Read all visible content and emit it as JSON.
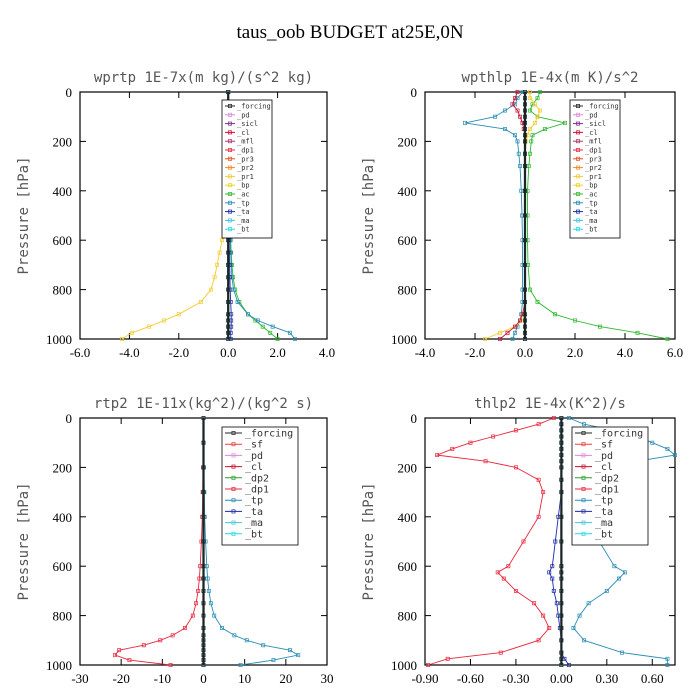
{
  "title": "taus_oob  BUDGET at25E,0N",
  "colors": {
    "_forcing": "#222222",
    "_pd": "#d88ad8",
    "_sicl": "#7a2c8a",
    "_cl": "#c8102e",
    "_mfl": "#b0306a",
    "_dp1": "#e8263c",
    "_dp2": "#2e9e2e",
    "_pr3": "#e05020",
    "_pr2": "#f08a20",
    "_pr1": "#f2cc30",
    "_bp": "#f0d020",
    "_ac": "#2db82d",
    "_tp": "#2a8db5",
    "_ta": "#1a2aa8",
    "_ma": "#40c8d8",
    "_bt": "#20d8e8",
    "_sf": "#e84040"
  },
  "chart_data": [
    {
      "type": "line",
      "title": "wprtp  1E-7x(m kg)/(s^2 kg)",
      "xlabel": "",
      "ylabel": "Pressure [hPa]",
      "xlim": [
        -6,
        4
      ],
      "ylim": [
        1000,
        0
      ],
      "xticks": [
        "-6.0",
        "-4.0",
        "-2.0",
        "0.0",
        "2.0",
        "4.0"
      ],
      "xtick_values": [
        -6,
        -4,
        -2,
        0,
        2,
        4
      ],
      "yticks": [
        "0",
        "200",
        "400",
        "600",
        "800",
        "1000"
      ],
      "ytick_values": [
        0,
        200,
        400,
        600,
        800,
        1000
      ],
      "legend_placement": "top-right",
      "legend": [
        "_forcing",
        "_pd",
        "_sicl",
        "_cl",
        "_mfl",
        "_dp1",
        "_pr3",
        "_pr2",
        "_pr1",
        "_bp",
        "_ac",
        "_tp",
        "_ta",
        "_ma",
        "_bt"
      ],
      "y": [
        0,
        50,
        100,
        150,
        200,
        250,
        300,
        350,
        400,
        450,
        500,
        550,
        600,
        650,
        700,
        750,
        800,
        850,
        900,
        925,
        950,
        975,
        1000
      ],
      "series": [
        {
          "name": "_pr1",
          "values": [
            0,
            0,
            0,
            0,
            0,
            0,
            0,
            0,
            -0.02,
            -0.05,
            -0.1,
            -0.18,
            -0.25,
            -0.35,
            -0.45,
            -0.55,
            -0.7,
            -1.1,
            -2.0,
            -2.6,
            -3.2,
            -3.9,
            -4.3
          ]
        },
        {
          "name": "_ac",
          "values": [
            0,
            0,
            0,
            0,
            0,
            0,
            0,
            0,
            0,
            0.03,
            0.05,
            0.08,
            0.1,
            0.12,
            0.15,
            0.2,
            0.28,
            0.45,
            0.8,
            1.1,
            1.4,
            1.7,
            2.0
          ]
        },
        {
          "name": "_tp",
          "values": [
            0,
            0,
            0,
            0,
            0,
            0,
            0,
            0,
            0,
            0.02,
            0.04,
            0.06,
            0.08,
            0.1,
            0.12,
            0.15,
            0.22,
            0.38,
            0.8,
            1.2,
            1.8,
            2.5,
            2.7
          ]
        },
        {
          "name": "_ta",
          "values": [
            0,
            0,
            0,
            0,
            0,
            0,
            0,
            0,
            0,
            0,
            0.02,
            0.03,
            0.04,
            0.05,
            0.06,
            0.07,
            0.08,
            0.1,
            0.12,
            0.12,
            0.12,
            0.1,
            0.1
          ]
        },
        {
          "name": "_bt",
          "values": [
            0,
            0,
            0,
            0,
            0,
            0,
            0,
            0,
            0,
            0,
            0,
            0,
            0,
            0,
            0,
            0,
            0,
            0,
            0,
            0,
            0,
            0,
            0
          ]
        },
        {
          "name": "_forcing",
          "values": [
            0,
            0,
            0,
            0,
            0,
            0,
            0,
            0,
            0,
            0,
            0,
            0,
            0,
            0,
            0,
            0,
            0,
            0,
            0,
            0,
            0,
            0,
            0
          ]
        }
      ]
    },
    {
      "type": "line",
      "title": "wpthlp  1E-4x(m K)/s^2",
      "xlabel": "",
      "ylabel": "Pressure [hPa]",
      "xlim": [
        -4,
        6
      ],
      "ylim": [
        1000,
        0
      ],
      "xticks": [
        "-4.0",
        "-2.0",
        "0.0",
        "2.0",
        "4.0",
        "6.0"
      ],
      "xtick_values": [
        -4,
        -2,
        0,
        2,
        4,
        6
      ],
      "yticks": [
        "0",
        "200",
        "400",
        "600",
        "800",
        "1000"
      ],
      "ytick_values": [
        0,
        200,
        400,
        600,
        800,
        1000
      ],
      "legend_placement": "top-right",
      "legend": [
        "_forcing",
        "_pd",
        "_sicl",
        "_cl",
        "_mfl",
        "_dp1",
        "_pr3",
        "_pr2",
        "_pr1",
        "_bp",
        "_ac",
        "_tp",
        "_ta",
        "_ma",
        "_bt"
      ],
      "y": [
        0,
        25,
        50,
        75,
        100,
        125,
        150,
        175,
        200,
        250,
        300,
        400,
        500,
        600,
        700,
        800,
        850,
        900,
        925,
        950,
        975,
        1000
      ],
      "series": [
        {
          "name": "_ac",
          "values": [
            0.6,
            0.5,
            0.3,
            0.2,
            0.5,
            1.6,
            0.8,
            0.3,
            0.25,
            0.2,
            0.15,
            0.1,
            0.1,
            0.1,
            0.12,
            0.2,
            0.5,
            1.2,
            2.0,
            3.0,
            4.5,
            5.7
          ]
        },
        {
          "name": "_tp",
          "values": [
            -0.1,
            -0.3,
            -0.4,
            -0.8,
            -1.2,
            -2.4,
            -0.8,
            -0.4,
            -0.3,
            -0.25,
            -0.2,
            -0.15,
            -0.12,
            -0.1,
            -0.1,
            -0.1,
            -0.1,
            -0.15,
            -0.2,
            -0.3,
            -0.4,
            -0.5
          ]
        },
        {
          "name": "_pr1",
          "values": [
            0.2,
            0.2,
            0.4,
            0.6,
            0.5,
            0.4,
            0.2,
            0.1,
            0.05,
            0,
            0,
            0,
            0,
            0,
            0,
            0,
            0,
            -0.05,
            -0.1,
            -0.4,
            -1.0,
            -1.6
          ]
        },
        {
          "name": "_cl",
          "values": [
            -0.3,
            -0.4,
            -0.5,
            -0.3,
            -0.2,
            -0.1,
            -0.05,
            0,
            0,
            0,
            0,
            0,
            0,
            0,
            0,
            0,
            0,
            -0.1,
            -0.2,
            -0.4,
            -0.7,
            -1.0
          ]
        },
        {
          "name": "_bt",
          "values": [
            0,
            0,
            0,
            0,
            0,
            0,
            0,
            0,
            0,
            0,
            0,
            0,
            0,
            0,
            0,
            0,
            0,
            0,
            0,
            0,
            0,
            0
          ]
        },
        {
          "name": "_forcing",
          "values": [
            0,
            0,
            0,
            0,
            0,
            0,
            0,
            0,
            0,
            0,
            0,
            0,
            0,
            0,
            0,
            0,
            0,
            0,
            0,
            0,
            0,
            0
          ]
        }
      ]
    },
    {
      "type": "line",
      "title": "rtp2  1E-11x(kg^2)/(kg^2 s)",
      "xlabel": "",
      "ylabel": "Pressure [hPa]",
      "xlim": [
        -30,
        30
      ],
      "ylim": [
        1000,
        0
      ],
      "xticks": [
        "-30",
        "-20",
        "-10",
        "0",
        "10",
        "20",
        "30"
      ],
      "xtick_values": [
        -30,
        -20,
        -10,
        0,
        10,
        20,
        30
      ],
      "yticks": [
        "0",
        "200",
        "400",
        "600",
        "800",
        "1000"
      ],
      "ytick_values": [
        0,
        200,
        400,
        600,
        800,
        1000
      ],
      "legend_placement": "top-right",
      "legend": [
        "_forcing",
        "_sf",
        "_pd",
        "_cl",
        "_dp2",
        "_dp1",
        "_tp",
        "_ta",
        "_ma",
        "_bt"
      ],
      "y": [
        0,
        100,
        200,
        300,
        400,
        500,
        600,
        650,
        700,
        750,
        800,
        850,
        880,
        900,
        920,
        940,
        960,
        980,
        1000
      ],
      "series": [
        {
          "name": "_dp1",
          "values": [
            0,
            0,
            -0.1,
            -0.2,
            -0.3,
            -0.5,
            -0.8,
            -1.0,
            -1.3,
            -1.8,
            -2.6,
            -4.5,
            -7.5,
            -10.5,
            -14.5,
            -20.5,
            -21.5,
            -18,
            -8
          ]
        },
        {
          "name": "_tp",
          "values": [
            0,
            0,
            0.1,
            0.2,
            0.3,
            0.5,
            0.8,
            1.0,
            1.3,
            1.8,
            2.6,
            4.5,
            7.5,
            10.5,
            14.5,
            21.0,
            23.0,
            17,
            9
          ]
        },
        {
          "name": "_bt",
          "values": [
            0,
            0,
            0,
            0,
            0,
            0,
            0,
            0,
            0,
            0,
            0,
            0,
            0,
            0,
            0,
            0,
            0,
            0,
            0
          ]
        },
        {
          "name": "_forcing",
          "values": [
            0,
            0,
            0,
            0,
            0,
            0,
            0,
            0,
            0,
            0,
            0,
            0,
            0,
            0,
            0,
            0,
            0,
            0,
            0
          ]
        }
      ]
    },
    {
      "type": "line",
      "title": "thlp2  1E-4x(K^2)/s",
      "xlabel": "",
      "ylabel": "Pressure [hPa]",
      "xlim": [
        -0.9,
        0.75
      ],
      "ylim": [
        1000,
        0
      ],
      "xticks": [
        "-0.90",
        "-0.60",
        "-0.30",
        "0.00",
        "0.30",
        "0.60"
      ],
      "xtick_values": [
        -0.9,
        -0.6,
        -0.3,
        0,
        0.3,
        0.6
      ],
      "yticks": [
        "0",
        "200",
        "400",
        "600",
        "800",
        "1000"
      ],
      "ytick_values": [
        0,
        200,
        400,
        600,
        800,
        1000
      ],
      "legend_placement": "top-right",
      "legend": [
        "_forcing",
        "_sf",
        "_pd",
        "_cl",
        "_dp2",
        "_dp1",
        "_tp",
        "_ta",
        "_ma",
        "_bt"
      ],
      "y": [
        0,
        25,
        50,
        75,
        100,
        125,
        150,
        175,
        200,
        250,
        300,
        400,
        500,
        600,
        625,
        650,
        700,
        750,
        800,
        850,
        900,
        950,
        975,
        1000
      ],
      "series": [
        {
          "name": "_dp1",
          "values": [
            -0.05,
            -0.15,
            -0.3,
            -0.45,
            -0.6,
            -0.72,
            -0.82,
            -0.5,
            -0.3,
            -0.15,
            -0.12,
            -0.15,
            -0.25,
            -0.35,
            -0.42,
            -0.38,
            -0.3,
            -0.18,
            -0.12,
            -0.08,
            -0.15,
            -0.4,
            -0.75,
            -0.88
          ]
        },
        {
          "name": "_tp",
          "values": [
            0.05,
            0.15,
            0.35,
            0.5,
            0.6,
            0.7,
            0.75,
            0.5,
            0.3,
            0.15,
            0.12,
            0.15,
            0.25,
            0.35,
            0.42,
            0.38,
            0.3,
            0.18,
            0.12,
            0.08,
            0.15,
            0.4,
            0.7,
            0.7
          ]
        },
        {
          "name": "_ta",
          "values": [
            0,
            0,
            0,
            0,
            0,
            0,
            0,
            0,
            0,
            0,
            0,
            -0.02,
            -0.04,
            -0.06,
            -0.08,
            -0.06,
            -0.05,
            -0.03,
            -0.02,
            -0.01,
            0,
            0,
            0.02,
            0.05
          ]
        },
        {
          "name": "_bt",
          "values": [
            0,
            0,
            0,
            0,
            0,
            0,
            0,
            0,
            0,
            0,
            0,
            0,
            0,
            0,
            0,
            0,
            0,
            0,
            0,
            0,
            0,
            0,
            0,
            0
          ]
        },
        {
          "name": "_forcing",
          "values": [
            0,
            0,
            0,
            0,
            0,
            0,
            0,
            0,
            0,
            0,
            0,
            0,
            0,
            0,
            0,
            0,
            0,
            0,
            0,
            0,
            0,
            0,
            0,
            0
          ]
        }
      ]
    }
  ]
}
